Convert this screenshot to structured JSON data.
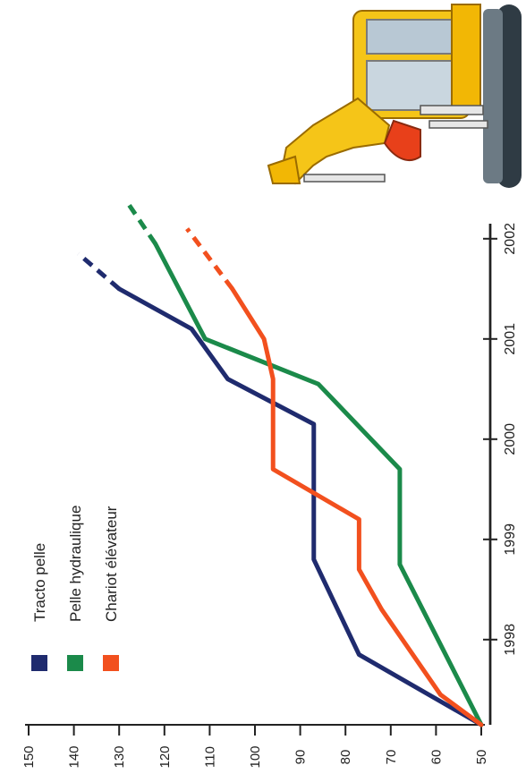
{
  "chart_data": {
    "type": "line",
    "orientation": "rotated-90-clockwise",
    "title": "",
    "xlabel": "",
    "ylabel": "",
    "ylim": [
      50,
      150
    ],
    "y_ticks": [
      "50",
      "60",
      "70",
      "80",
      "90",
      "100",
      "110",
      "120",
      "130",
      "140",
      "150"
    ],
    "x_ticks": [
      "1998",
      "1999",
      "2000",
      "2001",
      "2002"
    ],
    "grid": false,
    "legend_position": "top-left",
    "series": [
      {
        "name": "Tracto pelle",
        "color": "#1f2b6e",
        "points": [
          [
            1997.15,
            50
          ],
          [
            1997.85,
            77
          ],
          [
            1998.8,
            87
          ],
          [
            2000.15,
            87
          ],
          [
            2000.6,
            106
          ],
          [
            2001.1,
            114
          ],
          [
            2001.5,
            130
          ],
          [
            2001.85,
            139
          ]
        ],
        "projected_from_index": 6
      },
      {
        "name": "Pelle hydraulique",
        "color": "#1b8a4a",
        "points": [
          [
            1997.15,
            50
          ],
          [
            1998.75,
            68
          ],
          [
            1999.7,
            68
          ],
          [
            2000.55,
            86
          ],
          [
            2001.0,
            111
          ],
          [
            2001.95,
            122
          ],
          [
            2002.35,
            128
          ]
        ],
        "projected_from_index": 5
      },
      {
        "name": "Chariot élévateur",
        "color": "#f2501e",
        "points": [
          [
            1997.15,
            50
          ],
          [
            1997.45,
            59
          ],
          [
            1998.3,
            72
          ],
          [
            1998.7,
            77
          ],
          [
            1999.2,
            77
          ],
          [
            1999.7,
            96
          ],
          [
            2000.6,
            96
          ],
          [
            2001.0,
            98
          ],
          [
            2001.5,
            105
          ],
          [
            2002.1,
            115
          ]
        ],
        "projected_from_index": 8
      }
    ]
  },
  "illustration": {
    "icon": "excavator-icon",
    "body_color": "#f5c518"
  }
}
